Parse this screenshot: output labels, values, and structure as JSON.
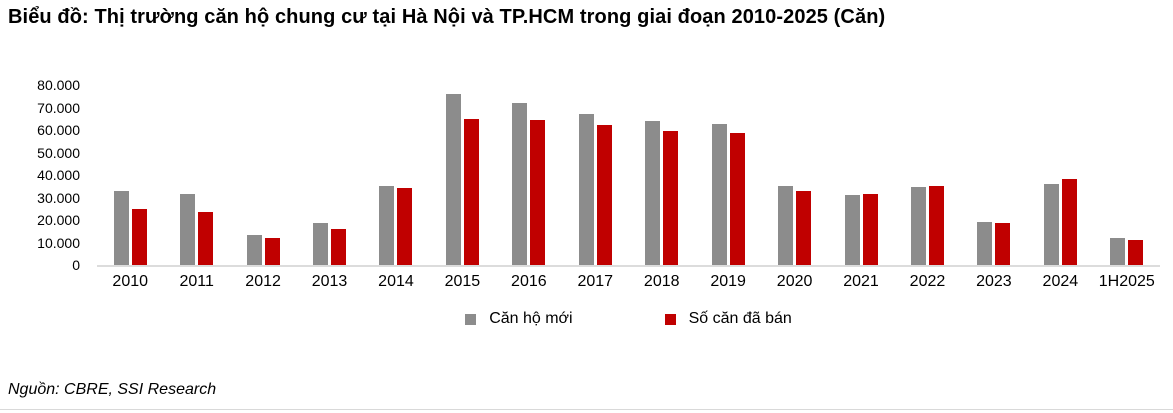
{
  "title": "Biểu đồ: Thị trường căn hộ chung cư tại Hà Nội và TP.HCM trong giai đoạn 2010-2025 (Căn)",
  "source": "Nguồn: CBRE, SSI Research",
  "colors": {
    "new_supply": "#8C8C8C",
    "units_sold": "#C00000",
    "axis_line": "#DCDCDC",
    "text": "#000000"
  },
  "chart_data": {
    "type": "bar",
    "title": "Biểu đồ: Thị trường căn hộ chung cư tại Hà Nội và TP.HCM trong giai đoạn 2010-2025 (Căn)",
    "categories": [
      "2010",
      "2011",
      "2012",
      "2013",
      "2014",
      "2015",
      "2016",
      "2017",
      "2018",
      "2019",
      "2020",
      "2021",
      "2022",
      "2023",
      "2024",
      "1H2025"
    ],
    "series": [
      {
        "name": "Căn hộ mới",
        "color": "#8C8C8C",
        "values": [
          33000,
          31500,
          13500,
          18500,
          35000,
          76000,
          72000,
          67000,
          64000,
          62500,
          35000,
          31000,
          34500,
          19000,
          36000,
          12000
        ]
      },
      {
        "name": "Số căn đã bán",
        "color": "#C00000",
        "values": [
          25000,
          23500,
          12000,
          16000,
          34000,
          65000,
          64500,
          62000,
          59500,
          58500,
          33000,
          31500,
          35000,
          18500,
          38000,
          11000
        ]
      }
    ],
    "xlabel": "",
    "ylabel": "",
    "ylim": [
      0,
      80000
    ],
    "y_ticks": [
      {
        "label": "80.000",
        "value": 80000
      },
      {
        "label": "70.000",
        "value": 70000
      },
      {
        "label": "60.000",
        "value": 60000
      },
      {
        "label": "50.000",
        "value": 50000
      },
      {
        "label": "40.000",
        "value": 40000
      },
      {
        "label": "30.000",
        "value": 30000
      },
      {
        "label": "20.000",
        "value": 20000
      },
      {
        "label": "10.000",
        "value": 10000
      },
      {
        "label": "0",
        "value": 0
      }
    ],
    "grid": false,
    "legend_position": "bottom"
  }
}
